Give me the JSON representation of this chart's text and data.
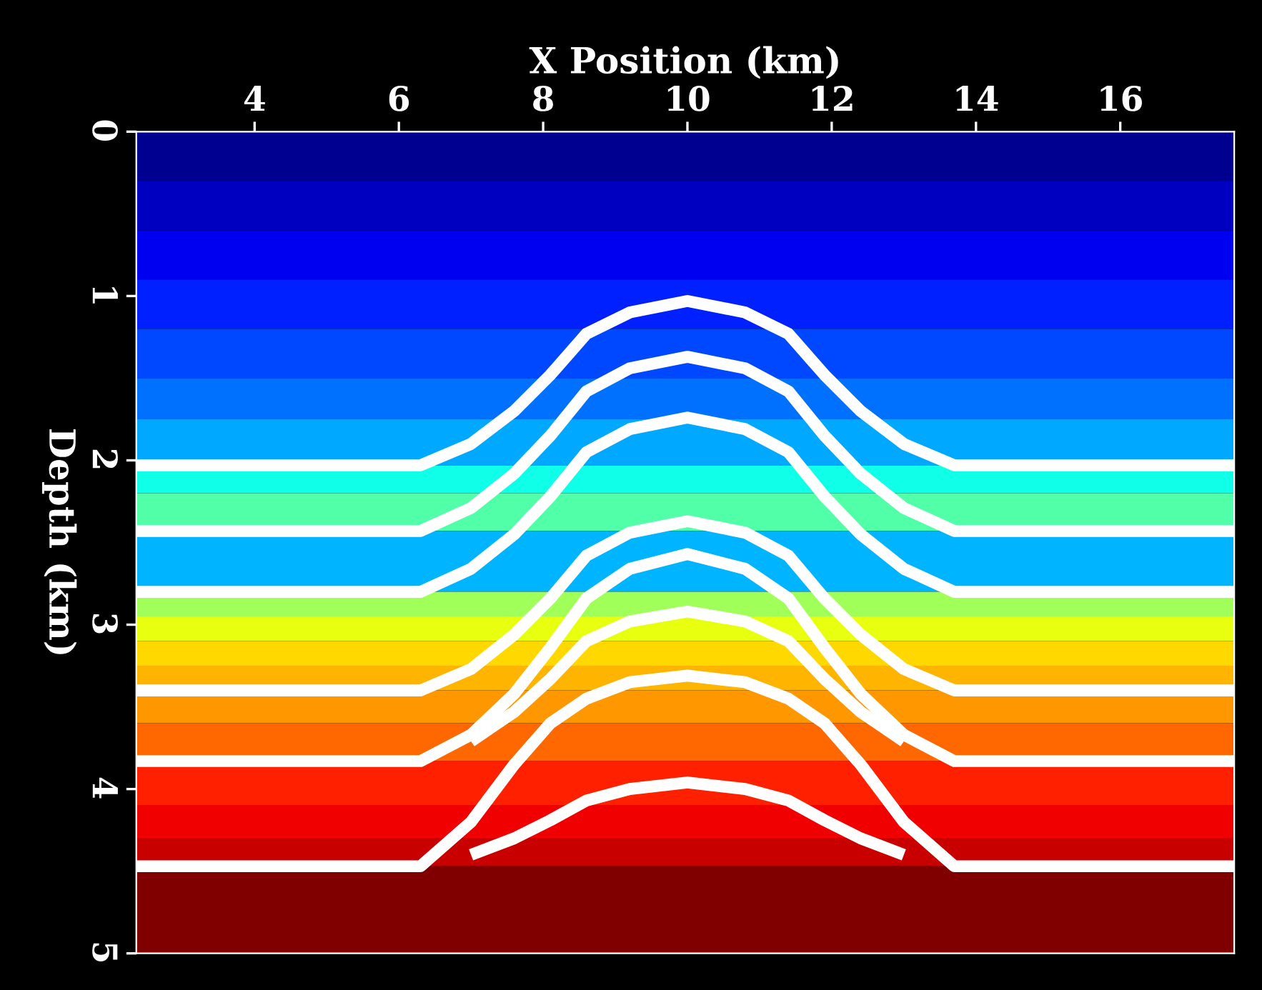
{
  "chart_data": {
    "type": "line",
    "xlabel": "X Position (km)",
    "ylabel": "Depth (km)",
    "x": [
      2.36,
      6.3,
      7.0,
      7.6,
      8.1,
      8.6,
      9.2,
      10,
      10.8,
      11.4,
      11.9,
      12.4,
      13.0,
      13.7,
      17.58
    ],
    "xlim": [
      2.36,
      17.58
    ],
    "xticks": [
      4,
      6,
      8,
      10,
      12,
      14,
      16
    ],
    "ylim": [
      5,
      0
    ],
    "yticks": [
      0,
      1,
      2,
      3,
      4,
      5
    ],
    "grid": false,
    "marker": "none",
    "line_style": "solid",
    "series": [
      {
        "color": "#ffffff",
        "values": [
          2.03,
          2.03,
          1.9,
          1.7,
          1.48,
          1.23,
          1.1,
          1.03,
          1.1,
          1.23,
          1.48,
          1.7,
          1.9,
          2.03,
          2.03
        ]
      },
      {
        "color": "#ffffff",
        "values": [
          2.43,
          2.43,
          2.29,
          2.08,
          1.85,
          1.58,
          1.44,
          1.37,
          1.44,
          1.58,
          1.85,
          2.08,
          2.29,
          2.43,
          2.43
        ]
      },
      {
        "color": "#ffffff",
        "values": [
          2.8,
          2.8,
          2.66,
          2.45,
          2.22,
          1.95,
          1.81,
          1.74,
          1.81,
          1.95,
          2.22,
          2.45,
          2.66,
          2.8,
          2.8
        ]
      },
      {
        "color": "#ffffff",
        "values": [
          3.4,
          3.4,
          3.27,
          3.06,
          2.84,
          2.58,
          2.44,
          2.37,
          2.44,
          2.58,
          2.84,
          3.06,
          3.27,
          3.4,
          3.4
        ]
      },
      {
        "color": "#ffffff",
        "values": [
          3.83,
          3.83,
          3.67,
          3.42,
          3.14,
          2.84,
          2.66,
          2.57,
          2.66,
          2.84,
          3.14,
          3.42,
          3.67,
          3.83,
          3.83
        ]
      },
      {
        "color": "#ffffff",
        "x": [
          7.0,
          7.6,
          8.1,
          8.6,
          9.2,
          10,
          10.8,
          11.4,
          11.9,
          12.4,
          13.0
        ],
        "values": [
          3.71,
          3.53,
          3.33,
          3.1,
          2.98,
          2.92,
          2.98,
          3.1,
          3.33,
          3.53,
          3.71
        ]
      },
      {
        "color": "#ffffff",
        "values": [
          4.47,
          4.47,
          4.2,
          3.85,
          3.6,
          3.45,
          3.35,
          3.31,
          3.35,
          3.45,
          3.6,
          3.85,
          4.2,
          4.47,
          4.47
        ]
      },
      {
        "color": "#ffffff",
        "x": [
          7.0,
          7.6,
          8.1,
          8.6,
          9.2,
          10,
          10.8,
          11.4,
          11.9,
          12.4,
          13.0
        ],
        "values": [
          4.4,
          4.3,
          4.19,
          4.07,
          4.0,
          3.96,
          4.0,
          4.07,
          4.19,
          4.3,
          4.4
        ]
      }
    ],
    "bands": [
      {
        "axis": "y",
        "from": 0,
        "to": 0.3,
        "color": "#000090"
      },
      {
        "axis": "y",
        "from": 0.3,
        "to": 0.6,
        "color": "#0000c0"
      },
      {
        "axis": "y",
        "from": 0.6,
        "to": 0.9,
        "color": "#0000f0"
      },
      {
        "axis": "y",
        "from": 0.9,
        "to": 1.2,
        "color": "#0020ff"
      },
      {
        "axis": "y",
        "from": 1.2,
        "to": 1.5,
        "color": "#0048ff"
      },
      {
        "axis": "y",
        "from": 1.5,
        "to": 1.75,
        "color": "#0070ff"
      },
      {
        "axis": "y",
        "from": 1.75,
        "to": 2.03,
        "color": "#00a8ff"
      },
      {
        "axis": "y",
        "from": 2.03,
        "to": 2.2,
        "color": "#10ffe8"
      },
      {
        "axis": "y",
        "from": 2.2,
        "to": 2.43,
        "color": "#50ffa8"
      },
      {
        "axis": "y",
        "from": 2.43,
        "to": 2.8,
        "color": "#00b4ff"
      },
      {
        "axis": "y",
        "from": 2.8,
        "to": 2.95,
        "color": "#a0ff58"
      },
      {
        "axis": "y",
        "from": 2.95,
        "to": 3.1,
        "color": "#e8ff10"
      },
      {
        "axis": "y",
        "from": 3.1,
        "to": 3.25,
        "color": "#ffd800"
      },
      {
        "axis": "y",
        "from": 3.25,
        "to": 3.4,
        "color": "#ffb400"
      },
      {
        "axis": "y",
        "from": 3.4,
        "to": 3.6,
        "color": "#ff9800"
      },
      {
        "axis": "y",
        "from": 3.6,
        "to": 3.83,
        "color": "#ff6800"
      },
      {
        "axis": "y",
        "from": 3.83,
        "to": 4.1,
        "color": "#ff2000"
      },
      {
        "axis": "y",
        "from": 4.1,
        "to": 4.3,
        "color": "#f00000"
      },
      {
        "axis": "y",
        "from": 4.3,
        "to": 4.47,
        "color": "#c80000"
      },
      {
        "axis": "y",
        "from": 4.47,
        "to": 5,
        "color": "#800000"
      }
    ]
  }
}
